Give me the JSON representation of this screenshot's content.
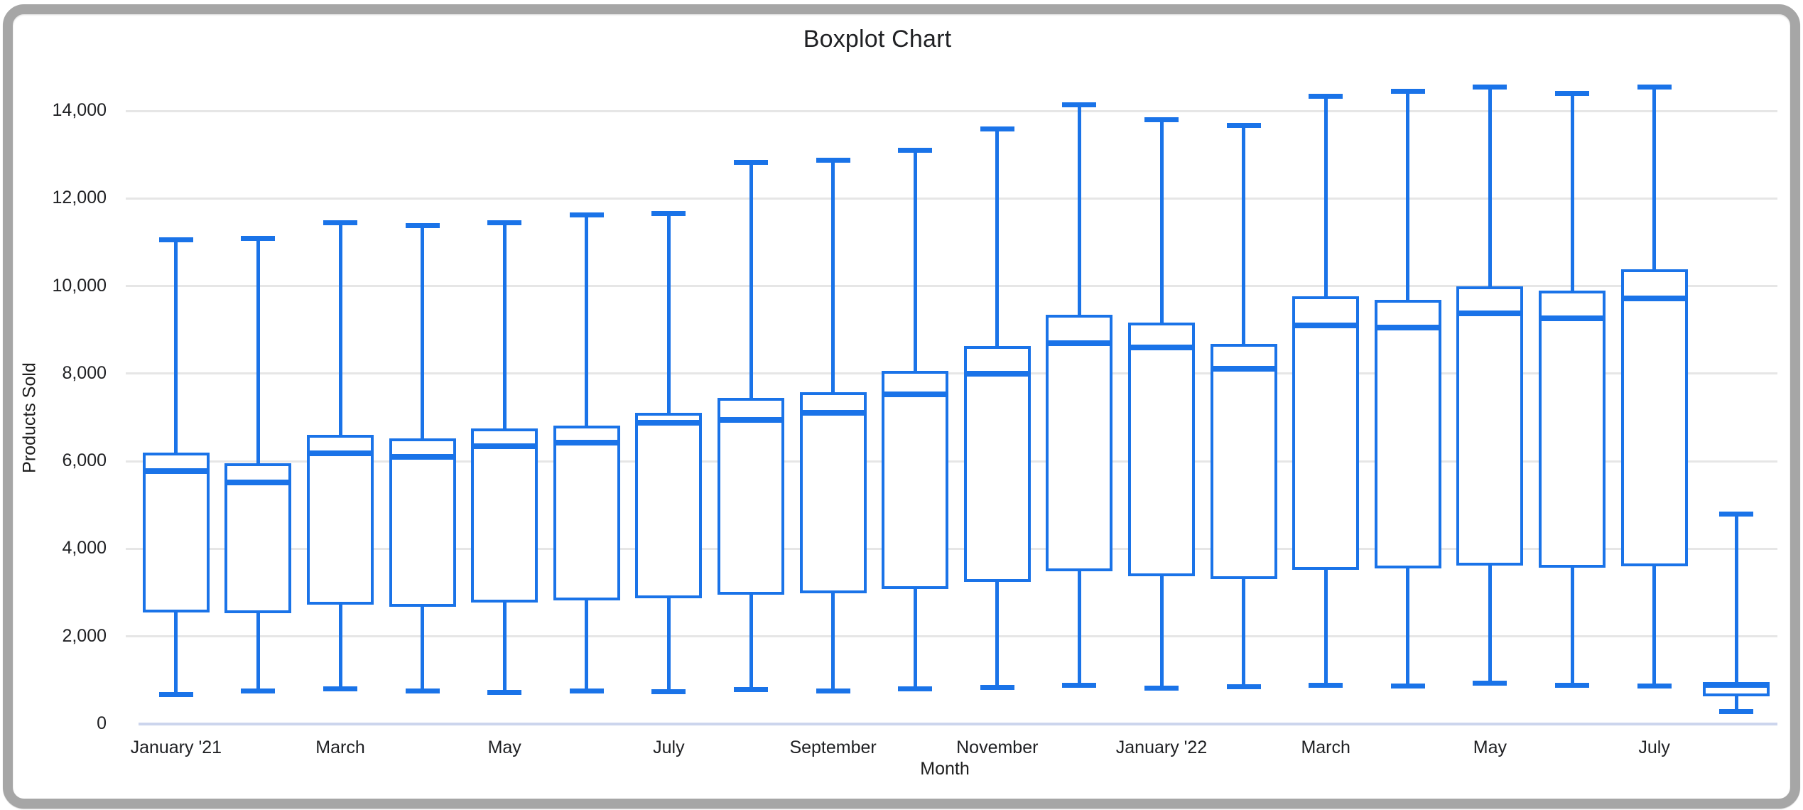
{
  "window": {
    "frame_color": "#a6a6a6",
    "background": "#ffffff"
  },
  "chart_data": {
    "type": "boxplot",
    "title": "Boxplot Chart",
    "xlabel": "Month",
    "ylabel": "Products Sold",
    "ylim": [
      0,
      14000
    ],
    "ytick_step": 2000,
    "ytick_labels": [
      "0",
      "2,000",
      "4,000",
      "6,000",
      "8,000",
      "10,000",
      "12,000",
      "14,000"
    ],
    "grid": true,
    "legend_position": "none",
    "series_color": "#1a73e8",
    "gridline_color": "#e6e6e6",
    "baseline_color": "#ccd5ed",
    "text_color": "#202124",
    "x_tick_labels": [
      "January '21",
      "March",
      "May",
      "July",
      "September",
      "November",
      "January '22",
      "March",
      "May",
      "July"
    ],
    "x_tick_every": 2,
    "boxes": [
      {
        "low": 680,
        "q1": 2550,
        "median": 5780,
        "q3": 6200,
        "high": 11050
      },
      {
        "low": 750,
        "q1": 2530,
        "median": 5520,
        "q3": 5950,
        "high": 11080
      },
      {
        "low": 800,
        "q1": 2720,
        "median": 6180,
        "q3": 6600,
        "high": 11450
      },
      {
        "low": 750,
        "q1": 2680,
        "median": 6100,
        "q3": 6520,
        "high": 11380
      },
      {
        "low": 720,
        "q1": 2780,
        "median": 6350,
        "q3": 6750,
        "high": 11450
      },
      {
        "low": 760,
        "q1": 2820,
        "median": 6420,
        "q3": 6820,
        "high": 11620
      },
      {
        "low": 740,
        "q1": 2870,
        "median": 6880,
        "q3": 7100,
        "high": 11650
      },
      {
        "low": 790,
        "q1": 2950,
        "median": 6950,
        "q3": 7450,
        "high": 12830
      },
      {
        "low": 760,
        "q1": 2980,
        "median": 7100,
        "q3": 7580,
        "high": 12870
      },
      {
        "low": 810,
        "q1": 3080,
        "median": 7520,
        "q3": 8060,
        "high": 13100
      },
      {
        "low": 840,
        "q1": 3250,
        "median": 7990,
        "q3": 8630,
        "high": 13580
      },
      {
        "low": 880,
        "q1": 3480,
        "median": 8690,
        "q3": 9350,
        "high": 14130
      },
      {
        "low": 820,
        "q1": 3380,
        "median": 8590,
        "q3": 9170,
        "high": 13800
      },
      {
        "low": 850,
        "q1": 3310,
        "median": 8110,
        "q3": 8680,
        "high": 13670
      },
      {
        "low": 880,
        "q1": 3520,
        "median": 9100,
        "q3": 9760,
        "high": 14330
      },
      {
        "low": 860,
        "q1": 3560,
        "median": 9060,
        "q3": 9690,
        "high": 14450
      },
      {
        "low": 930,
        "q1": 3610,
        "median": 9370,
        "q3": 10000,
        "high": 14550
      },
      {
        "low": 890,
        "q1": 3570,
        "median": 9260,
        "q3": 9900,
        "high": 14400
      },
      {
        "low": 860,
        "q1": 3600,
        "median": 9710,
        "q3": 10380,
        "high": 14550
      },
      {
        "low": 280,
        "q1": 630,
        "median": 900,
        "q3": 950,
        "high": 4800
      }
    ]
  }
}
